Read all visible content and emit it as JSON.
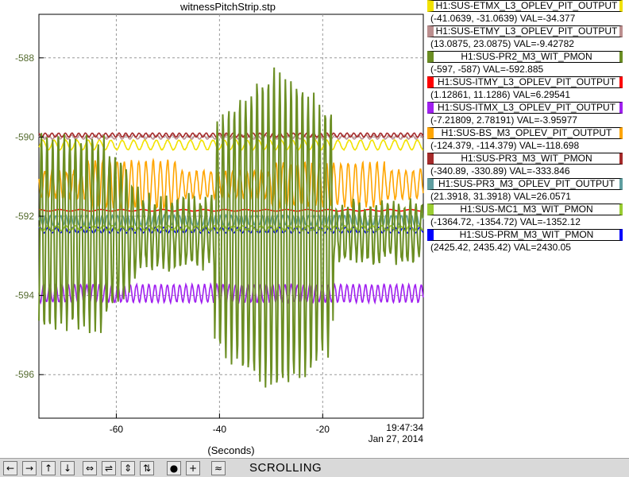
{
  "chart_data": {
    "type": "line",
    "title": "witnessPitchStrip.stp",
    "xlabel": "(Seconds)",
    "ylabel": "",
    "xlim": [
      -75,
      -0.5
    ],
    "ylim": [
      -597.1,
      -586.9
    ],
    "x_ticks": [
      -60,
      -40,
      -20
    ],
    "x_tick_labels": [
      "-60",
      "-40",
      "-20"
    ],
    "y_ticks": [
      -588,
      -590,
      -592,
      -594,
      -596
    ],
    "y_tick_labels": [
      "-588",
      "-590",
      "-592",
      "-594",
      "-596"
    ],
    "timestamp_time": "19:47:34",
    "timestamp_date": "Jan 27, 2014",
    "grid": true,
    "legend_position": "right",
    "series": [
      {
        "name": "H1:SUS-ETMX_L3_OPLEV_PIT_OUTPUT",
        "range": "(-41.0639, -31.0639) VAL=-34.377",
        "color": "#f2e200",
        "base": -590.2,
        "amp": 0.12,
        "period": 2.2,
        "burst": 0
      },
      {
        "name": "H1:SUS-ETMY_L3_OPLEV_PIT_OUTPUT",
        "range": "(13.0875, 23.0875) VAL=-9.42782",
        "color": "#bc8f8f",
        "base": -590.0,
        "amp": 0.05,
        "period": 1.5,
        "burst": 0
      },
      {
        "name": "H1:SUS-PR2_M3_WIT_PMON",
        "range": "(-597, -587) VAL=-592.885",
        "color": "#6b8e23",
        "base": -592.4,
        "amp": 2.4,
        "period": 1.1,
        "burst": 1
      },
      {
        "name": "H1:SUS-ITMY_L3_OPLEV_PIT_OUTPUT",
        "range": "(1.12861, 11.1286) VAL=6.29541",
        "color": "#ff0000",
        "base": -591.85,
        "amp": 0.02,
        "period": 4.0,
        "burst": 0
      },
      {
        "name": "H1:SUS-ITMX_L3_OPLEV_PIT_OUTPUT",
        "range": "(-7.21809, 2.78191) VAL=-3.95977",
        "color": "#a020f0",
        "base": -593.95,
        "amp": 0.22,
        "period": 1.2,
        "burst": 0
      },
      {
        "name": "H1:SUS-BS_M3_OPLEV_PIT_OUTPUT",
        "range": "(-124.379, -114.379) VAL=-118.698",
        "color": "#ffa500",
        "base": -591.2,
        "amp": 0.6,
        "period": 1.4,
        "burst": 2
      },
      {
        "name": "H1:SUS-PR3_M3_WIT_PMON",
        "range": "(-340.89, -330.89) VAL=-333.846",
        "color": "#a52a2a",
        "base": -589.95,
        "amp": 0.05,
        "period": 1.3,
        "burst": 0
      },
      {
        "name": "H1:SUS-PR3_M3_OPLEV_PIT_OUTPUT",
        "range": "(21.3918, 31.3918) VAL=26.0571",
        "color": "#5f9ea0",
        "base": -592.1,
        "amp": 0.12,
        "period": 1.0,
        "burst": 0
      },
      {
        "name": "H1:SUS-MC1_M3_WIT_PMON",
        "range": "(-1364.72, -1354.72) VAL=-1352.12",
        "color": "#9acd32",
        "base": -592.3,
        "amp": 0.06,
        "period": 1.8,
        "burst": 0
      },
      {
        "name": "H1:SUS-PRM_M3_WIT_PMON",
        "range": "(2425.42, 2435.42) VAL=2430.05",
        "color": "#0000ff",
        "base": -592.35,
        "amp": 0.07,
        "period": 1.6,
        "burst": 0
      }
    ]
  },
  "toolbar": {
    "icons": [
      "arrow-left-icon",
      "arrow-right-icon",
      "arrow-up-icon",
      "arrow-down-icon",
      "expand-horizontal-icon",
      "compress-horizontal-icon",
      "expand-vertical-icon",
      "compress-vertical-icon",
      "record-icon",
      "add-icon",
      "autoscale-icon"
    ],
    "mode_label": "SCROLLING"
  }
}
